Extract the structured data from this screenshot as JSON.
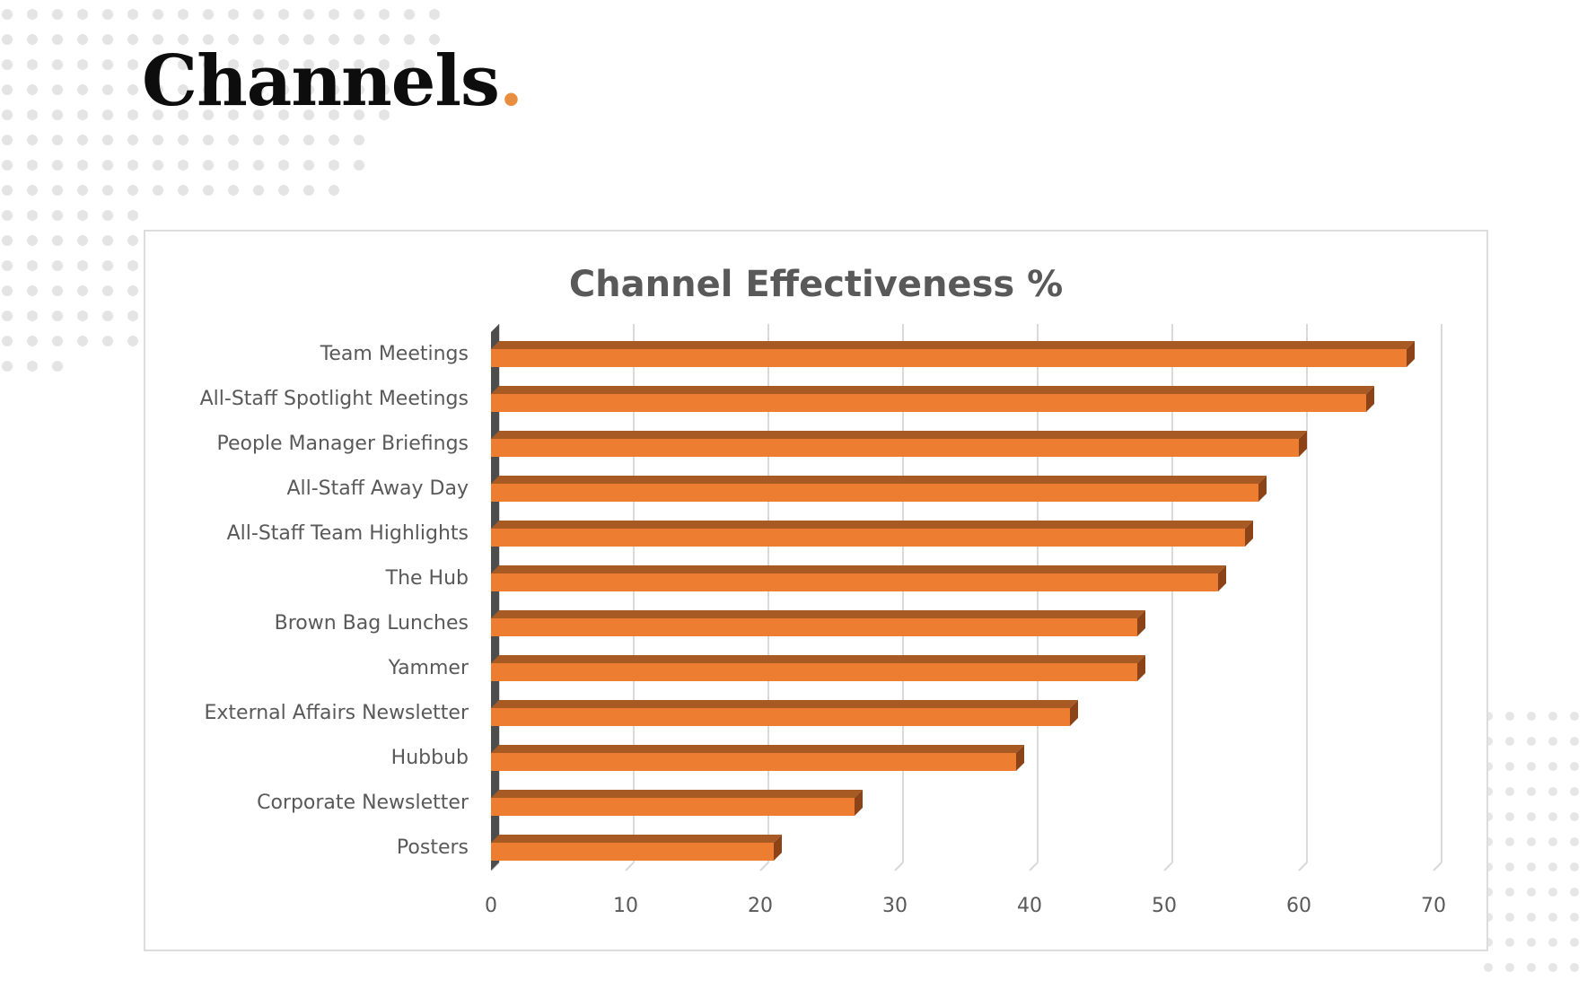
{
  "page": {
    "title": "Channels",
    "title_dot": ".",
    "accent_color": "#e98d3e"
  },
  "chart_data": {
    "type": "bar",
    "orientation": "horizontal",
    "title": "Channel Effectiveness %",
    "categories": [
      "Team Meetings",
      "All-Staff Spotlight Meetings",
      "People Manager Briefings",
      "All-Staff Away Day",
      "All-Staff Team Highlights",
      "The Hub",
      "Brown Bag Lunches",
      "Yammer",
      "External Affairs Newsletter",
      "Hubbub",
      "Corporate Newsletter",
      "Posters"
    ],
    "values": [
      68,
      65,
      60,
      57,
      56,
      54,
      48,
      48,
      43,
      39,
      27,
      21
    ],
    "xlim": [
      0,
      70
    ],
    "xticks": [
      0,
      10,
      20,
      30,
      40,
      50,
      60,
      70
    ],
    "xlabel": "",
    "ylabel": "",
    "grid": true,
    "legend": "none",
    "bar_color": "#ed7d31",
    "style": "3d"
  }
}
